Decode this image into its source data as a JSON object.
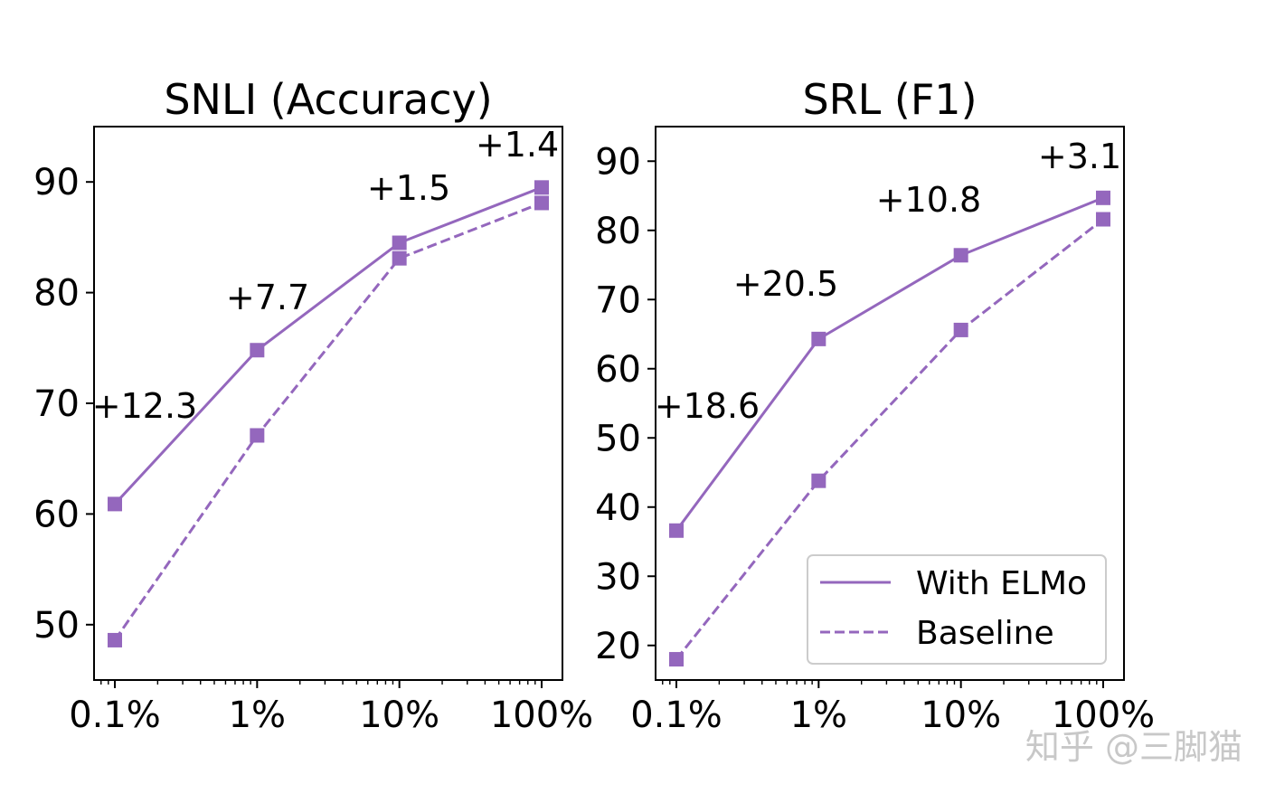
{
  "chart_data": [
    {
      "type": "line",
      "title": "SNLI (Accuracy)",
      "xscale": "log",
      "categories": [
        "0.1%",
        "1%",
        "10%",
        "100%"
      ],
      "x": [
        0.1,
        1,
        10,
        100
      ],
      "ylim": [
        45,
        95
      ],
      "yticks": [
        50,
        60,
        70,
        80,
        90
      ],
      "series": [
        {
          "name": "With ELMo",
          "values": [
            60.9,
            74.8,
            84.5,
            89.5
          ],
          "style": "solid"
        },
        {
          "name": "Baseline",
          "values": [
            48.6,
            67.1,
            83.1,
            88.1
          ],
          "style": "dashed"
        }
      ],
      "annotations": [
        "+12.3",
        "+7.7",
        "+1.5",
        "+1.4"
      ]
    },
    {
      "type": "line",
      "title": "SRL (F1)",
      "xscale": "log",
      "categories": [
        "0.1%",
        "1%",
        "10%",
        "100%"
      ],
      "x": [
        0.1,
        1,
        10,
        100
      ],
      "ylim": [
        15,
        95
      ],
      "yticks": [
        20,
        30,
        40,
        50,
        60,
        70,
        80,
        90
      ],
      "series": [
        {
          "name": "With ELMo",
          "values": [
            36.6,
            64.3,
            76.4,
            84.7
          ],
          "style": "solid"
        },
        {
          "name": "Baseline",
          "values": [
            18.0,
            43.8,
            65.6,
            81.6
          ],
          "style": "dashed"
        }
      ],
      "annotations": [
        "+18.6",
        "+20.5",
        "+10.8",
        "+3.1"
      ],
      "legend": {
        "position": "lower-right",
        "entries": [
          "With ELMo",
          "Baseline"
        ]
      }
    }
  ],
  "colors": {
    "series": "#9467bd",
    "axis": "#000000",
    "legend_border": "#cccccc"
  },
  "watermark": "知乎 @三脚猫"
}
